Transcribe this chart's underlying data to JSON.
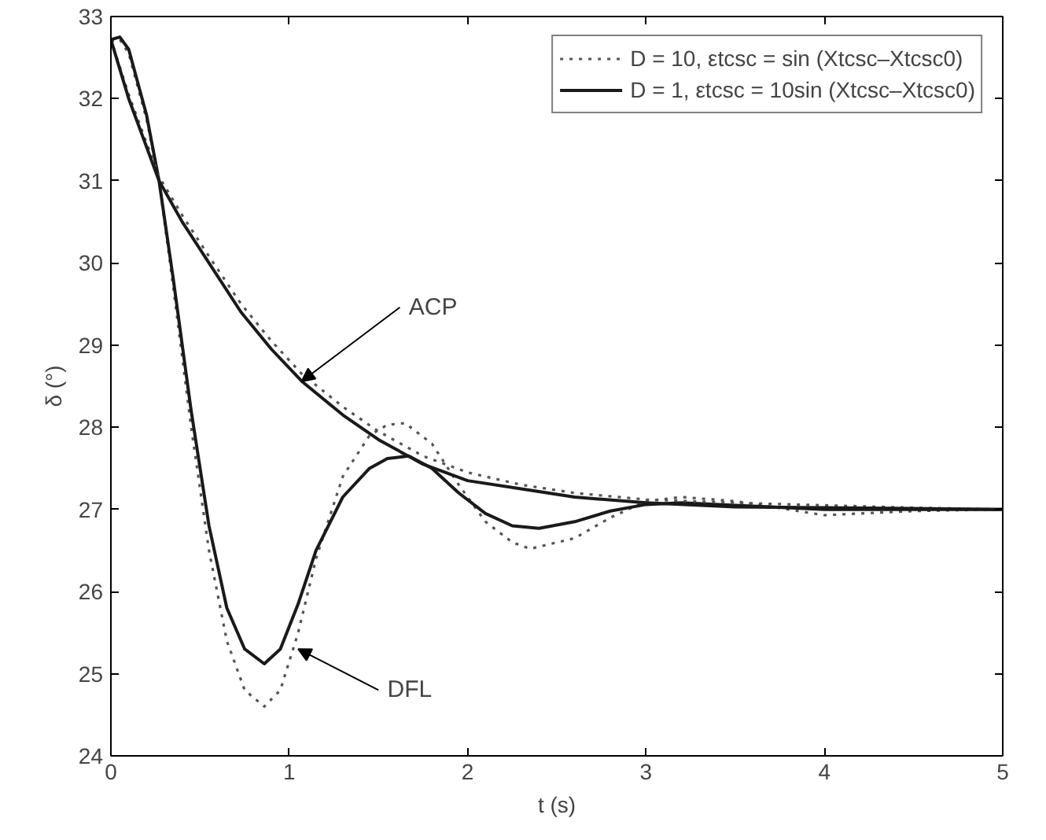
{
  "chart_data": {
    "type": "line",
    "xlabel": "t (s)",
    "ylabel": "δ (°)",
    "xlim": [
      0,
      5
    ],
    "ylim": [
      24,
      33
    ],
    "xticks": [
      0,
      1,
      2,
      3,
      4,
      5
    ],
    "yticks": [
      24,
      25,
      26,
      27,
      28,
      29,
      30,
      31,
      32,
      33
    ],
    "grid": false,
    "legend": "top right",
    "marker": "none",
    "series": [
      {
        "name": "D = 10, εtcsc = sin (Xtcsc–Xtcsc0)",
        "color": "#555555",
        "line_style": "dotted",
        "x": [
          0,
          0.05,
          0.1,
          0.2,
          0.27,
          0.35,
          0.45,
          0.55,
          0.65,
          0.75,
          0.86,
          0.95,
          1.05,
          1.15,
          1.3,
          1.45,
          1.55,
          1.65,
          1.8,
          1.95,
          2.1,
          2.25,
          2.35,
          2.6,
          2.8,
          3.0,
          3.2,
          3.5,
          4,
          4.5,
          5
        ],
        "values": [
          32.7,
          32.72,
          32.55,
          31.75,
          31.0,
          29.7,
          28.0,
          26.5,
          25.4,
          24.8,
          24.6,
          24.8,
          25.5,
          26.4,
          27.4,
          27.9,
          28.03,
          28.05,
          27.8,
          27.3,
          26.85,
          26.6,
          26.52,
          26.65,
          26.9,
          27.1,
          27.15,
          27.1,
          26.93,
          26.98,
          27.0
        ]
      },
      {
        "name": "D = 1, εtcsc = 10sin (Xtcsc–Xtcsc0)",
        "color": "#1a1a1a",
        "line_style": "solid",
        "x": [
          0,
          0.05,
          0.1,
          0.2,
          0.27,
          0.35,
          0.45,
          0.55,
          0.65,
          0.75,
          0.86,
          0.95,
          1.05,
          1.15,
          1.3,
          1.45,
          1.55,
          1.67,
          1.8,
          1.95,
          2.1,
          2.25,
          2.4,
          2.6,
          2.8,
          3.0,
          3.2,
          3.5,
          4,
          4.5,
          5
        ],
        "values": [
          32.72,
          32.75,
          32.6,
          31.8,
          31.0,
          29.8,
          28.2,
          26.8,
          25.8,
          25.3,
          25.12,
          25.3,
          25.85,
          26.5,
          27.15,
          27.5,
          27.62,
          27.65,
          27.5,
          27.2,
          26.95,
          26.8,
          26.77,
          26.85,
          26.98,
          27.06,
          27.08,
          27.05,
          27.0,
          27.0,
          27.0
        ]
      },
      {
        "color": "#555555",
        "line_style": "dotted",
        "x": [
          0,
          0.1,
          0.27,
          0.4,
          0.55,
          0.73,
          0.9,
          1.07,
          1.3,
          1.5,
          1.75,
          2,
          2.3,
          2.6,
          3,
          3.5,
          4,
          4.5,
          5
        ],
        "values": [
          32.72,
          32.05,
          31.05,
          30.58,
          30.08,
          29.5,
          29.05,
          28.65,
          28.25,
          27.95,
          27.65,
          27.45,
          27.3,
          27.2,
          27.12,
          27.08,
          27.05,
          27.02,
          27.0
        ]
      },
      {
        "color": "#1a1a1a",
        "line_style": "solid",
        "x": [
          0,
          0.1,
          0.27,
          0.4,
          0.55,
          0.73,
          0.9,
          1.07,
          1.3,
          1.5,
          1.75,
          2,
          2.3,
          2.6,
          3,
          3.5,
          4,
          4.5,
          5
        ],
        "values": [
          32.72,
          32.0,
          31.0,
          30.5,
          30.0,
          29.4,
          28.95,
          28.56,
          28.15,
          27.85,
          27.55,
          27.35,
          27.25,
          27.15,
          27.08,
          27.03,
          27.02,
          27.01,
          27.0
        ]
      }
    ],
    "annotations": [
      {
        "text": "ACP",
        "x": 1.07,
        "y": 28.56
      },
      {
        "text": "DFL",
        "x": 1.05,
        "y": 25.3
      }
    ]
  }
}
